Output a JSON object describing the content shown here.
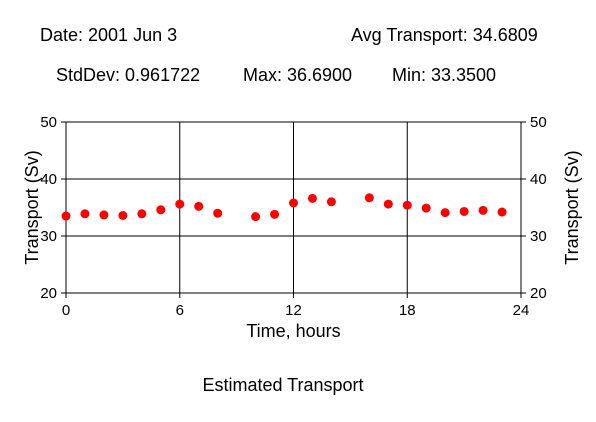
{
  "header": {
    "date": "Date: 2001 Jun 3",
    "avg": "Avg Transport: 34.6809",
    "stddev": "StdDev: 0.961722",
    "max": "Max: 36.6900",
    "min": "Min: 33.3500"
  },
  "chart_data": {
    "type": "scatter",
    "title": "Estimated Transport",
    "xlabel": "Time, hours",
    "ylabel": "Transport (Sv)",
    "xlim": [
      0,
      24
    ],
    "ylim": [
      20,
      50
    ],
    "xticks": [
      0,
      6,
      12,
      18,
      24
    ],
    "yticks": [
      20,
      30,
      40,
      50
    ],
    "grid": true,
    "point_color": "#ff0000",
    "series": [
      {
        "x": [
          0,
          1,
          2,
          3,
          4,
          5,
          6,
          7,
          8,
          10,
          11,
          12,
          13,
          14,
          16,
          17,
          18,
          19,
          20,
          21,
          22,
          23
        ],
        "y": [
          33.5,
          33.9,
          33.7,
          33.6,
          33.9,
          34.6,
          35.6,
          35.2,
          34.0,
          33.4,
          33.8,
          35.8,
          36.6,
          36.0,
          36.7,
          35.6,
          35.4,
          34.9,
          34.1,
          34.3,
          34.5,
          34.2
        ]
      }
    ]
  }
}
